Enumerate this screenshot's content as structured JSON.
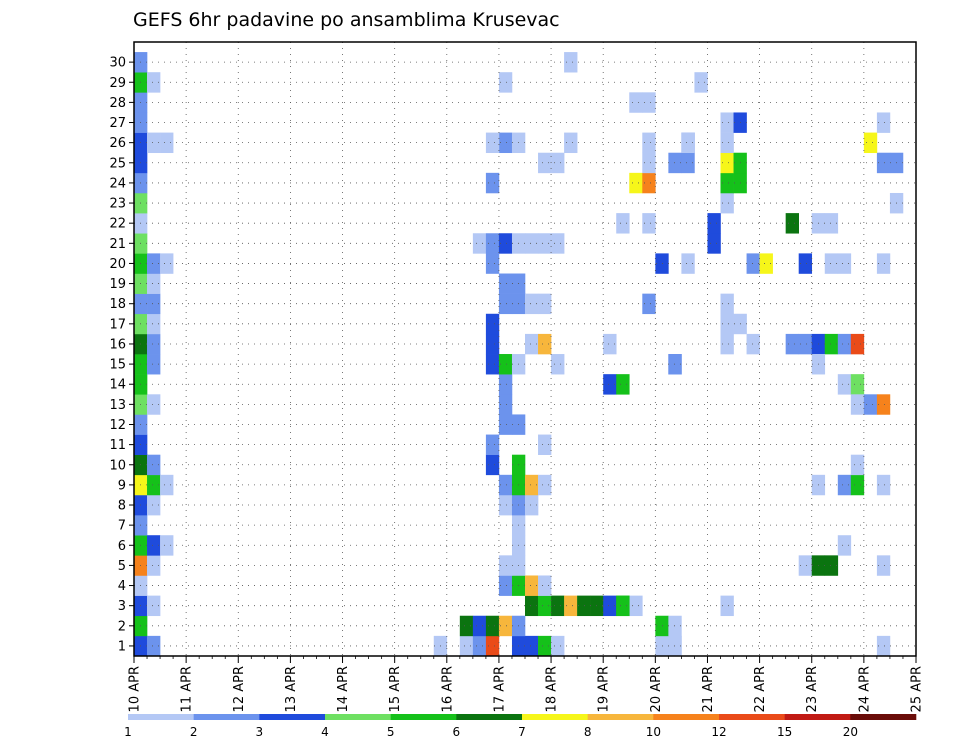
{
  "chart_data": {
    "type": "heatmap",
    "title": "GEFS 6hr padavine po ansamblima Krusevac",
    "xlabel": "",
    "ylabel": "",
    "y_ticks": [
      1,
      2,
      3,
      4,
      5,
      6,
      7,
      8,
      9,
      10,
      11,
      12,
      13,
      14,
      15,
      16,
      17,
      18,
      19,
      20,
      21,
      22,
      23,
      24,
      25,
      26,
      27,
      28,
      29,
      30
    ],
    "x_ticks": [
      "10 APR",
      "11 APR",
      "12 APR",
      "13 APR",
      "14 APR",
      "15 APR",
      "16 APR",
      "17 APR",
      "18 APR",
      "19 APR",
      "20 APR",
      "21 APR",
      "22 APR",
      "23 APR",
      "24 APR",
      "25 APR"
    ],
    "x_range_steps": [
      0,
      60
    ],
    "step_hours": 6,
    "legend": {
      "placement": "bottom",
      "labels": [
        "1",
        "2",
        "3",
        "4",
        "5",
        "6",
        "7",
        "8",
        "10",
        "12",
        "15",
        "20"
      ],
      "colors": [
        "#b4c8f5",
        "#6c93ed",
        "#1f4bdc",
        "#6ee062",
        "#15c11a",
        "#0b7410",
        "#f6f61a",
        "#f7b63c",
        "#f6821c",
        "#ea4b19",
        "#c11a14",
        "#6a0d09"
      ]
    },
    "cells": [
      [
        0,
        1,
        2
      ],
      [
        1,
        1,
        1
      ],
      [
        0,
        2,
        4
      ],
      [
        0,
        3,
        2
      ],
      [
        1,
        3,
        0
      ],
      [
        0,
        4,
        0
      ],
      [
        0,
        5,
        8
      ],
      [
        1,
        5,
        0
      ],
      [
        0,
        6,
        4
      ],
      [
        1,
        6,
        2
      ],
      [
        2,
        6,
        0
      ],
      [
        0,
        7,
        1
      ],
      [
        0,
        8,
        2
      ],
      [
        1,
        8,
        0
      ],
      [
        0,
        9,
        6
      ],
      [
        1,
        9,
        4
      ],
      [
        2,
        9,
        0
      ],
      [
        0,
        10,
        5
      ],
      [
        1,
        10,
        1
      ],
      [
        0,
        11,
        2
      ],
      [
        0,
        12,
        1
      ],
      [
        0,
        13,
        3
      ],
      [
        1,
        13,
        0
      ],
      [
        0,
        14,
        4
      ],
      [
        0,
        15,
        4
      ],
      [
        1,
        15,
        1
      ],
      [
        0,
        16,
        5
      ],
      [
        1,
        16,
        1
      ],
      [
        0,
        17,
        3
      ],
      [
        1,
        17,
        0
      ],
      [
        0,
        18,
        1
      ],
      [
        1,
        18,
        1
      ],
      [
        0,
        19,
        3
      ],
      [
        1,
        19,
        0
      ],
      [
        0,
        20,
        4
      ],
      [
        1,
        20,
        1
      ],
      [
        2,
        20,
        0
      ],
      [
        0,
        21,
        3
      ],
      [
        0,
        22,
        0
      ],
      [
        0,
        23,
        3
      ],
      [
        0,
        24,
        1
      ],
      [
        0,
        25,
        2
      ],
      [
        0,
        26,
        2
      ],
      [
        1,
        26,
        0
      ],
      [
        2,
        26,
        0
      ],
      [
        0,
        27,
        1
      ],
      [
        0,
        28,
        1
      ],
      [
        0,
        29,
        4
      ],
      [
        1,
        29,
        0
      ],
      [
        0,
        30,
        1
      ],
      [
        23,
        1,
        0
      ],
      [
        25,
        1,
        0
      ],
      [
        26,
        1,
        1
      ],
      [
        27,
        1,
        9
      ],
      [
        29,
        1,
        2
      ],
      [
        30,
        1,
        2
      ],
      [
        31,
        1,
        4
      ],
      [
        32,
        1,
        0
      ],
      [
        25,
        2,
        5
      ],
      [
        26,
        2,
        2
      ],
      [
        27,
        2,
        5
      ],
      [
        28,
        2,
        7
      ],
      [
        29,
        2,
        1
      ],
      [
        30,
        3,
        5
      ],
      [
        31,
        3,
        4
      ],
      [
        32,
        3,
        5
      ],
      [
        33,
        3,
        7
      ],
      [
        34,
        3,
        5
      ],
      [
        35,
        3,
        5
      ],
      [
        36,
        3,
        2
      ],
      [
        37,
        3,
        4
      ],
      [
        38,
        3,
        0
      ],
      [
        28,
        4,
        1
      ],
      [
        29,
        4,
        4
      ],
      [
        30,
        4,
        7
      ],
      [
        31,
        4,
        0
      ],
      [
        28,
        5,
        0
      ],
      [
        29,
        5,
        0
      ],
      [
        29,
        6,
        0
      ],
      [
        29,
        7,
        0
      ],
      [
        28,
        8,
        0
      ],
      [
        29,
        8,
        1
      ],
      [
        30,
        8,
        0
      ],
      [
        28,
        9,
        1
      ],
      [
        29,
        9,
        4
      ],
      [
        30,
        9,
        7
      ],
      [
        31,
        9,
        0
      ],
      [
        29,
        10,
        4
      ],
      [
        27,
        10,
        2
      ],
      [
        27,
        11,
        1
      ],
      [
        31,
        11,
        0
      ],
      [
        28,
        12,
        1
      ],
      [
        29,
        12,
        1
      ],
      [
        28,
        13,
        1
      ],
      [
        28,
        14,
        1
      ],
      [
        27,
        15,
        2
      ],
      [
        28,
        15,
        4
      ],
      [
        29,
        15,
        0
      ],
      [
        27,
        16,
        2
      ],
      [
        30,
        16,
        0
      ],
      [
        31,
        16,
        7
      ],
      [
        27,
        17,
        2
      ],
      [
        28,
        18,
        1
      ],
      [
        29,
        18,
        1
      ],
      [
        30,
        18,
        0
      ],
      [
        31,
        18,
        0
      ],
      [
        28,
        19,
        1
      ],
      [
        29,
        19,
        1
      ],
      [
        27,
        20,
        1
      ],
      [
        26,
        21,
        0
      ],
      [
        27,
        21,
        1
      ],
      [
        28,
        21,
        2
      ],
      [
        29,
        21,
        0
      ],
      [
        27,
        24,
        1
      ],
      [
        28,
        26,
        1
      ],
      [
        27,
        26,
        0
      ],
      [
        29,
        26,
        0
      ],
      [
        28,
        29,
        0
      ],
      [
        37,
        3,
        4
      ],
      [
        36,
        14,
        2
      ],
      [
        37,
        14,
        4
      ],
      [
        32,
        15,
        0
      ],
      [
        31,
        21,
        0
      ],
      [
        32,
        21,
        0
      ],
      [
        30,
        21,
        0
      ],
      [
        31,
        25,
        0
      ],
      [
        32,
        25,
        0
      ],
      [
        33,
        26,
        0
      ],
      [
        33,
        30,
        0
      ],
      [
        37,
        22,
        0
      ],
      [
        39,
        22,
        0
      ],
      [
        38,
        24,
        6
      ],
      [
        39,
        24,
        8
      ],
      [
        39,
        25,
        0
      ],
      [
        39,
        26,
        0
      ],
      [
        38,
        28,
        0
      ],
      [
        39,
        28,
        0
      ],
      [
        39,
        18,
        1
      ],
      [
        36,
        16,
        0
      ],
      [
        40,
        1,
        0
      ],
      [
        41,
        1,
        0
      ],
      [
        41,
        1,
        0
      ],
      [
        40,
        2,
        4
      ],
      [
        41,
        2,
        0
      ],
      [
        40,
        20,
        2
      ],
      [
        41,
        25,
        1
      ],
      [
        42,
        25,
        1
      ],
      [
        42,
        26,
        1
      ],
      [
        41,
        15,
        1
      ],
      [
        41,
        15,
        1
      ],
      [
        42,
        20,
        0
      ],
      [
        43,
        29,
        0
      ],
      [
        42,
        26,
        0
      ],
      [
        45,
        3,
        0
      ],
      [
        45,
        16,
        0
      ],
      [
        45,
        18,
        0
      ],
      [
        45,
        17,
        0
      ],
      [
        46,
        17,
        0
      ],
      [
        44,
        21,
        2
      ],
      [
        44,
        22,
        2
      ],
      [
        45,
        23,
        0
      ],
      [
        45,
        24,
        4
      ],
      [
        46,
        24,
        4
      ],
      [
        45,
        25,
        6
      ],
      [
        46,
        25,
        4
      ],
      [
        45,
        26,
        0
      ],
      [
        45,
        27,
        0
      ],
      [
        46,
        27,
        2
      ],
      [
        47,
        20,
        1
      ],
      [
        48,
        20,
        6
      ],
      [
        47,
        16,
        0
      ],
      [
        51,
        20,
        2
      ],
      [
        50,
        22,
        5
      ],
      [
        50,
        16,
        1
      ],
      [
        51,
        16,
        1
      ],
      [
        52,
        16,
        2
      ],
      [
        53,
        16,
        4
      ],
      [
        54,
        16,
        1
      ],
      [
        55,
        16,
        9
      ],
      [
        52,
        15,
        0
      ],
      [
        54,
        14,
        0
      ],
      [
        55,
        14,
        3
      ],
      [
        51,
        5,
        0
      ],
      [
        52,
        5,
        5
      ],
      [
        53,
        5,
        5
      ],
      [
        52,
        9,
        0
      ],
      [
        54,
        9,
        1
      ],
      [
        55,
        9,
        4
      ],
      [
        57,
        9,
        0
      ],
      [
        55,
        10,
        0
      ],
      [
        54,
        6,
        0
      ],
      [
        55,
        13,
        0
      ],
      [
        56,
        13,
        1
      ],
      [
        57,
        13,
        8
      ],
      [
        57,
        1,
        0
      ],
      [
        57,
        5,
        0
      ],
      [
        57,
        20,
        0
      ],
      [
        53,
        20,
        0
      ],
      [
        54,
        20,
        0
      ],
      [
        52,
        22,
        0
      ],
      [
        53,
        22,
        0
      ],
      [
        57,
        25,
        1
      ],
      [
        58,
        25,
        1
      ],
      [
        56,
        26,
        6
      ],
      [
        57,
        27,
        0
      ],
      [
        58,
        23,
        0
      ]
    ]
  }
}
